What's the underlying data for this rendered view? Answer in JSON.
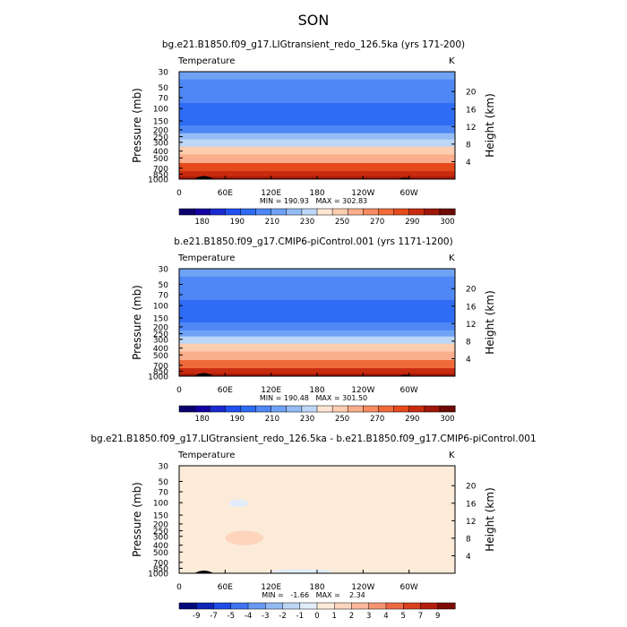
{
  "figure": {
    "title": "SON"
  },
  "chart_data": [
    {
      "type": "heatmap",
      "title": "bg.e21.B1850.f09_g17.LIGtransient_redo_126.5ka (yrs 171-200)",
      "variable": "Temperature",
      "units": "K",
      "ylabel": "Pressure (mb)",
      "ylabel_right": "Height (km)",
      "x_ticks": [
        "0",
        "60E",
        "120E",
        "180",
        "120W",
        "60W"
      ],
      "y_ticks": [
        "30",
        "50",
        "70",
        "100",
        "150",
        "200",
        "250",
        "300",
        "400",
        "500",
        "700",
        "850",
        "1000"
      ],
      "y2_ticks": [
        "4",
        "8",
        "12",
        "16",
        "20"
      ],
      "ylim": [
        1000,
        30
      ],
      "stats": "MIN = 190.93   MAX = 302.83",
      "colorbar_labels": [
        "180",
        "190",
        "210",
        "230",
        "250",
        "270",
        "290",
        "300"
      ],
      "levels": [
        {
          "p": 30,
          "value": 224
        },
        {
          "p": 50,
          "value": 217
        },
        {
          "p": 70,
          "value": 212
        },
        {
          "p": 100,
          "value": 207
        },
        {
          "p": 150,
          "value": 209
        },
        {
          "p": 200,
          "value": 215
        },
        {
          "p": 250,
          "value": 225
        },
        {
          "p": 300,
          "value": 234
        },
        {
          "p": 400,
          "value": 250
        },
        {
          "p": 500,
          "value": 262
        },
        {
          "p": 700,
          "value": 278
        },
        {
          "p": 850,
          "value": 287
        },
        {
          "p": 1000,
          "value": 297
        }
      ]
    },
    {
      "type": "heatmap",
      "title": "b.e21.B1850.f09_g17.CMIP6-piControl.001 (yrs 1171-1200)",
      "variable": "Temperature",
      "units": "K",
      "ylabel": "Pressure (mb)",
      "ylabel_right": "Height (km)",
      "x_ticks": [
        "0",
        "60E",
        "120E",
        "180",
        "120W",
        "60W"
      ],
      "y_ticks": [
        "30",
        "50",
        "70",
        "100",
        "150",
        "200",
        "250",
        "300",
        "400",
        "500",
        "700",
        "850",
        "1000"
      ],
      "y2_ticks": [
        "4",
        "8",
        "12",
        "16",
        "20"
      ],
      "ylim": [
        1000,
        30
      ],
      "stats": "MIN = 190.48   MAX = 301.50",
      "colorbar_labels": [
        "180",
        "190",
        "210",
        "230",
        "250",
        "270",
        "290",
        "300"
      ],
      "levels": [
        {
          "p": 30,
          "value": 223
        },
        {
          "p": 50,
          "value": 216
        },
        {
          "p": 70,
          "value": 211
        },
        {
          "p": 100,
          "value": 206
        },
        {
          "p": 150,
          "value": 208
        },
        {
          "p": 200,
          "value": 214
        },
        {
          "p": 250,
          "value": 224
        },
        {
          "p": 300,
          "value": 233
        },
        {
          "p": 400,
          "value": 249
        },
        {
          "p": 500,
          "value": 261
        },
        {
          "p": 700,
          "value": 277
        },
        {
          "p": 850,
          "value": 286
        },
        {
          "p": 1000,
          "value": 296
        }
      ]
    },
    {
      "type": "heatmap",
      "title": "bg.e21.B1850.f09_g17.LIGtransient_redo_126.5ka - b.e21.B1850.f09_g17.CMIP6-piControl.001",
      "variable": "Temperature",
      "units": "K",
      "ylabel": "Pressure (mb)",
      "ylabel_right": "Height (km)",
      "x_ticks": [
        "0",
        "60E",
        "120E",
        "180",
        "120W",
        "60W"
      ],
      "y_ticks": [
        "30",
        "50",
        "70",
        "100",
        "150",
        "200",
        "250",
        "300",
        "400",
        "500",
        "700",
        "850",
        "1000"
      ],
      "y2_ticks": [
        "4",
        "8",
        "12",
        "16",
        "20"
      ],
      "ylim": [
        1000,
        30
      ],
      "stats": "MIN =   -1.66   MAX =    2.34",
      "colorbar_labels": [
        "-9",
        "-7",
        "-5",
        "-4",
        "-3",
        "-2",
        "-1",
        "0",
        "1",
        "2",
        "3",
        "4",
        "5",
        "7",
        "9"
      ],
      "background_value": 0.7,
      "regions": [
        {
          "lon": [
            0,
            360
          ],
          "p": [
            30,
            70
          ],
          "value": 0.3
        },
        {
          "lon": [
            90,
            200
          ],
          "p": [
            70,
            250
          ],
          "value": 0.3
        },
        {
          "lon": [
            60,
            110
          ],
          "p": [
            250,
            400
          ],
          "value": 1.5
        },
        {
          "lon": [
            110,
            270
          ],
          "p": [
            400,
            700
          ],
          "value": 0.3
        },
        {
          "lon": [
            65,
            90
          ],
          "p": [
            90,
            115
          ],
          "value": -0.6
        },
        {
          "lon": [
            120,
            200
          ],
          "p": [
            880,
            1000
          ],
          "value": -0.4
        }
      ]
    }
  ],
  "colormaps": {
    "temperature": [
      "#0b006e",
      "#1400a0",
      "#1a2ad0",
      "#1f4ff0",
      "#2f6cf5",
      "#4f88f5",
      "#6fa2f5",
      "#95bdf5",
      "#bdd7f7",
      "#ffe6d3",
      "#fdcdb0",
      "#fbae8c",
      "#f78b62",
      "#f06a3a",
      "#e54a1c",
      "#c82a0f",
      "#9e1708",
      "#6e0a05"
    ],
    "difference": [
      "#050a7a",
      "#0f25b8",
      "#1f4ce6",
      "#3f73f0",
      "#6898f2",
      "#94baf3",
      "#bed6f6",
      "#e1ecfa",
      "#fdebd9",
      "#fdd5bd",
      "#fbb89b",
      "#f6936f",
      "#ec6a44",
      "#d8421f",
      "#b2200d",
      "#7e0c05"
    ]
  }
}
